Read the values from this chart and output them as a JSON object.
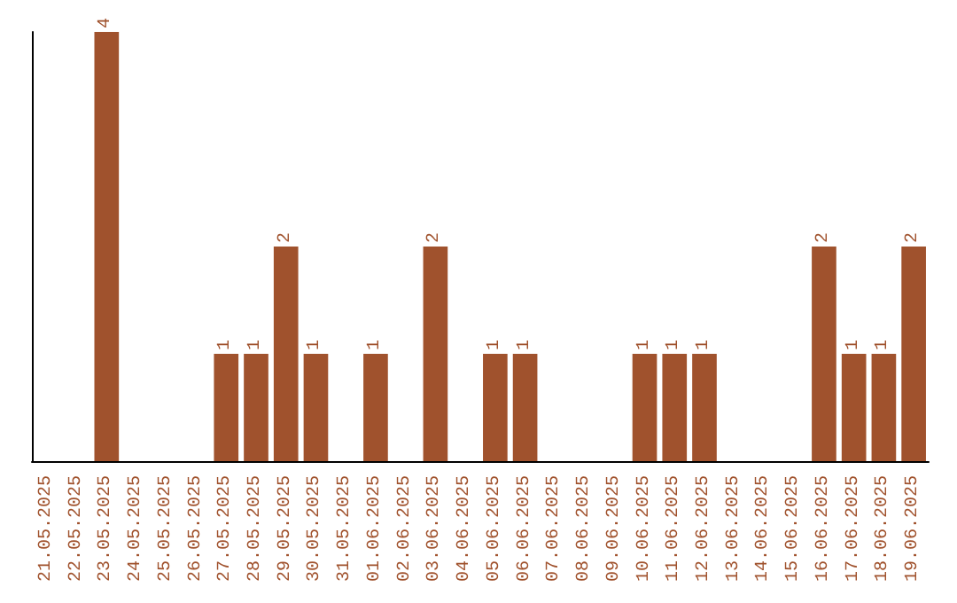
{
  "chart_data": {
    "type": "bar",
    "categories": [
      "21.05.2025",
      "22.05.2025",
      "23.05.2025",
      "24.05.2025",
      "25.05.2025",
      "26.05.2025",
      "27.05.2025",
      "28.05.2025",
      "29.05.2025",
      "30.05.2025",
      "31.05.2025",
      "01.06.2025",
      "02.06.2025",
      "03.06.2025",
      "04.06.2025",
      "05.06.2025",
      "06.06.2025",
      "07.06.2025",
      "08.06.2025",
      "09.06.2025",
      "10.06.2025",
      "11.06.2025",
      "12.06.2025",
      "13.06.2025",
      "14.06.2025",
      "15.06.2025",
      "16.06.2025",
      "17.06.2025",
      "18.06.2025",
      "19.06.2025"
    ],
    "values": [
      0,
      0,
      4,
      0,
      0,
      0,
      1,
      1,
      2,
      1,
      0,
      1,
      0,
      2,
      0,
      1,
      1,
      0,
      0,
      0,
      1,
      1,
      1,
      0,
      0,
      0,
      2,
      1,
      1,
      2
    ],
    "value_labels": [
      null,
      null,
      "4",
      null,
      null,
      null,
      "1",
      "1",
      "2",
      "1",
      null,
      "1",
      null,
      "2",
      null,
      "1",
      "1",
      null,
      null,
      null,
      "1",
      "1",
      "1",
      null,
      null,
      null,
      "2",
      "1",
      "1",
      "2"
    ],
    "color": "#a0522d",
    "tick_labels": "x",
    "grid": false
  }
}
